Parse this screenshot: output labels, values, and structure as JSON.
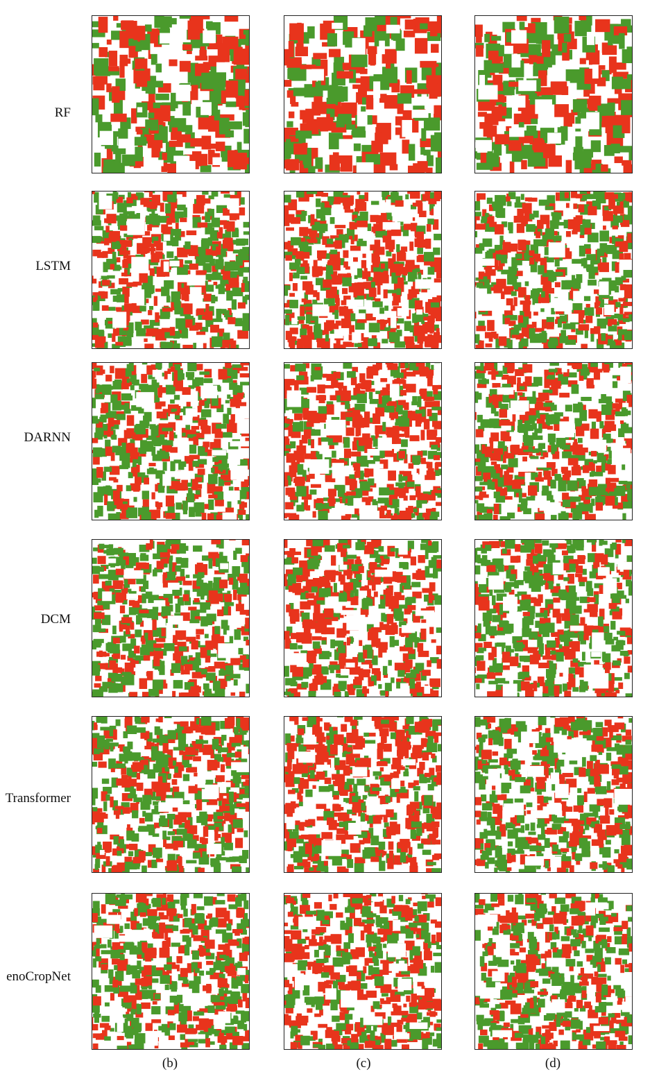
{
  "figure": {
    "rows": [
      {
        "label": "RF"
      },
      {
        "label": "LSTM"
      },
      {
        "label": "DARNN"
      },
      {
        "label": "DCM"
      },
      {
        "label": "Transformer"
      },
      {
        "label": "enoCropNet"
      }
    ],
    "columns": [
      {
        "label": "(b)"
      },
      {
        "label": "(c)"
      },
      {
        "label": "(d)"
      }
    ],
    "colors": {
      "class_a": "#e8341c",
      "class_b": "#4a9a2c",
      "background": "#ffffff",
      "border": "#222222"
    }
  }
}
